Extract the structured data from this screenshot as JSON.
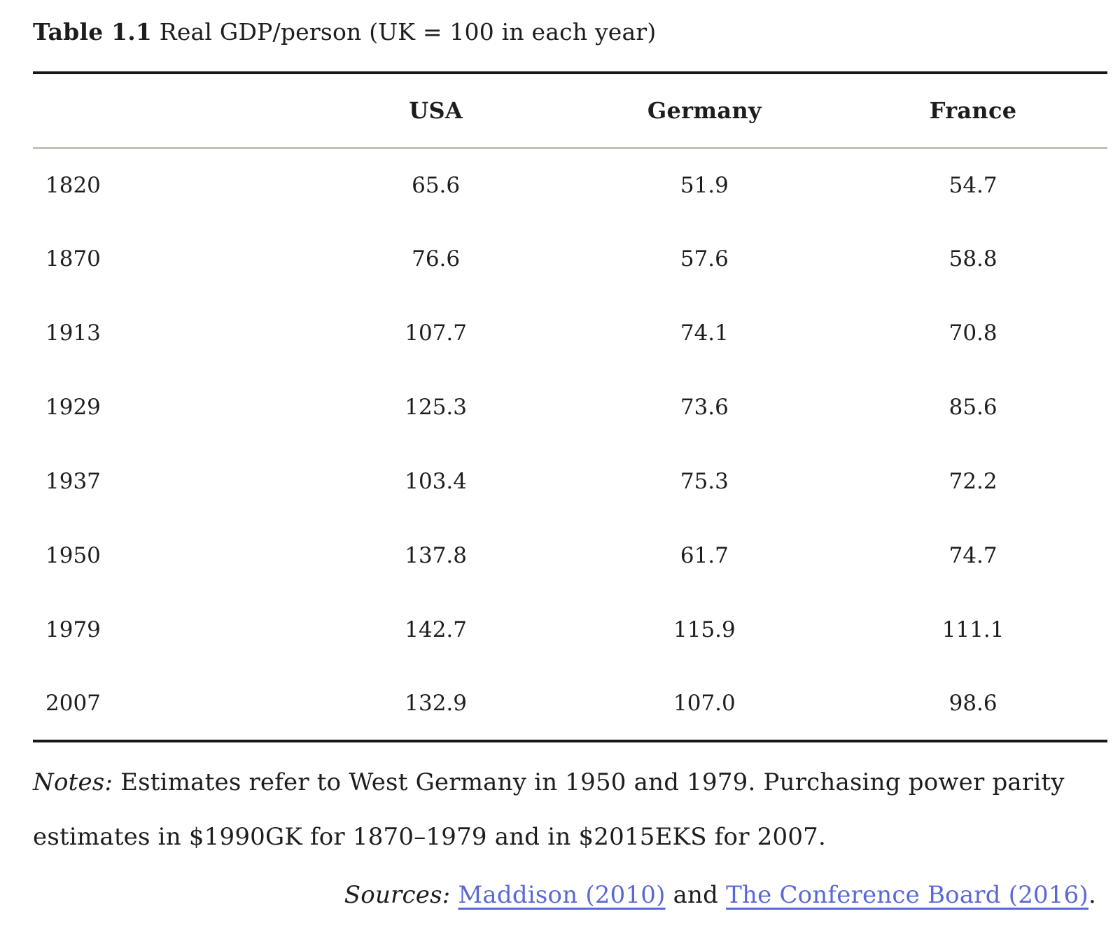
{
  "table": {
    "title_label": "Table 1.1",
    "title_rest": " Real GDP/person (UK = 100 in each year)",
    "columns": [
      "USA",
      "Germany",
      "France"
    ],
    "rows": [
      {
        "year": "1820",
        "values": [
          "65.6",
          "51.9",
          "54.7"
        ]
      },
      {
        "year": "1870",
        "values": [
          "76.6",
          "57.6",
          "58.8"
        ]
      },
      {
        "year": "1913",
        "values": [
          "107.7",
          "74.1",
          "70.8"
        ]
      },
      {
        "year": "1929",
        "values": [
          "125.3",
          "73.6",
          "85.6"
        ]
      },
      {
        "year": "1937",
        "values": [
          "103.4",
          "75.3",
          "72.2"
        ]
      },
      {
        "year": "1950",
        "values": [
          "137.8",
          "61.7",
          "74.7"
        ]
      },
      {
        "year": "1979",
        "values": [
          "142.7",
          "115.9",
          "111.1"
        ]
      },
      {
        "year": "2007",
        "values": [
          "132.9",
          "107.0",
          "98.6"
        ]
      }
    ]
  },
  "notes": {
    "label": "Notes:",
    "text": " Estimates refer to West Germany in 1950 and 1979. Purchasing power parity estimates in $1990GK for 1870–1979 and in $2015EKS for 2007."
  },
  "sources": {
    "label": "Sources:",
    "link1": "Maddison (2010)",
    "separator": " and ",
    "link2": "The Conference Board (2016)",
    "period": "."
  },
  "colors": {
    "text": "#1d1d1b",
    "rule_dark": "#161616",
    "rule_light": "#c1bfb6",
    "link": "#5a68d6",
    "background": "#ffffff"
  }
}
